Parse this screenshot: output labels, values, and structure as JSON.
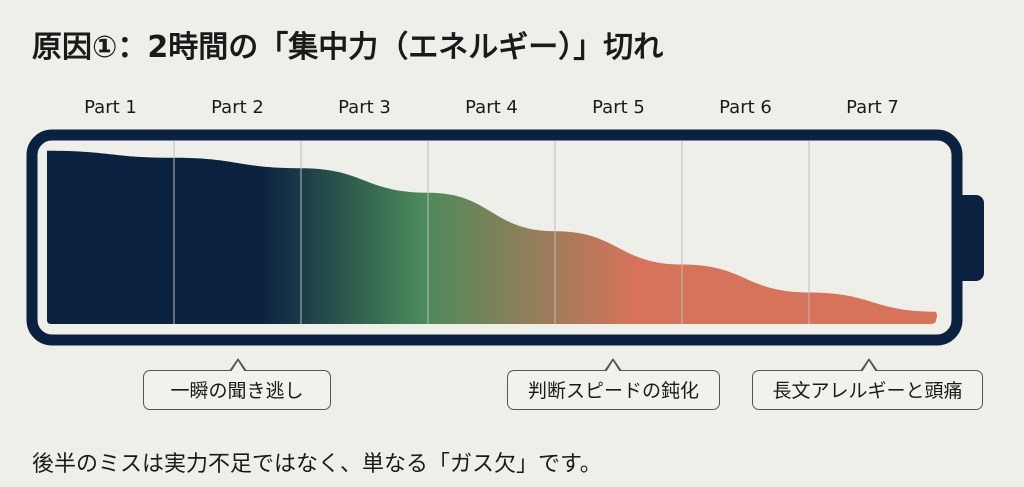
{
  "title": "原因①：2時間の「集中力（エネルギー）」切れ",
  "parts": [
    "Part 1",
    "Part 2",
    "Part 3",
    "Part 4",
    "Part 5",
    "Part 6",
    "Part 7"
  ],
  "energy_level_percent": [
    99,
    95,
    89,
    75,
    53,
    34,
    18,
    7
  ],
  "colors": {
    "battery": "#0b2140",
    "high": "#0b2140",
    "mid": "#4a8a5a",
    "low": "#d6735a",
    "background": "#efefe9"
  },
  "callouts": [
    {
      "text": "一瞬の聞き逃し",
      "part": "Part 2"
    },
    {
      "text": "判断スピードの鈍化",
      "part": "Part 5"
    },
    {
      "text": "長文アレルギーと頭痛",
      "part": "Part 7"
    }
  ],
  "footer": "後半のミスは実力不足ではなく、単なる「ガス欠」です。"
}
